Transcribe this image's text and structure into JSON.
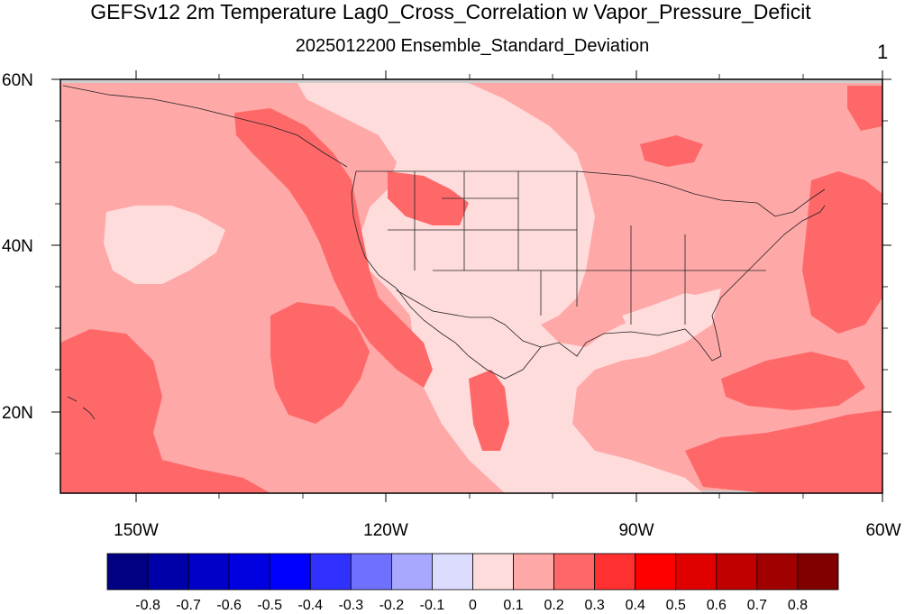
{
  "title": "GEFSv12 2m Temperature Lag0_Cross_Correlation w Vapor_Pressure_Deficit",
  "subtitle": "2025012200 Ensemble_Standard_Deviation",
  "panel_number": "1",
  "map": {
    "lat_labels": [
      "60N",
      "40N",
      "20N"
    ],
    "lon_labels": [
      "150W",
      "120W",
      "90W",
      "60W"
    ],
    "extent": {
      "lon": [
        -160,
        -60
      ],
      "lat": [
        10,
        60
      ]
    }
  },
  "colorbar": {
    "colors": [
      "#000080",
      "#0000a8",
      "#0000c8",
      "#0000e0",
      "#0000ff",
      "#3030ff",
      "#7070ff",
      "#a8a8ff",
      "#dcdcff",
      "#ffdcdc",
      "#ffa8a8",
      "#ff6868",
      "#ff3030",
      "#ff0000",
      "#e00000",
      "#c00000",
      "#a00000",
      "#800000"
    ],
    "labels": [
      "-0.8",
      "-0.7",
      "-0.6",
      "-0.5",
      "-0.4",
      "-0.3",
      "-0.2",
      "-0.1",
      "0",
      "0.1",
      "0.2",
      "0.3",
      "0.4",
      "0.5",
      "0.6",
      "0.7",
      "0.8"
    ]
  },
  "fill_colors": {
    "low": "#ffdcdc",
    "mid": "#ffa8a8",
    "high": "#ff6868",
    "missing": "#cccccc"
  }
}
